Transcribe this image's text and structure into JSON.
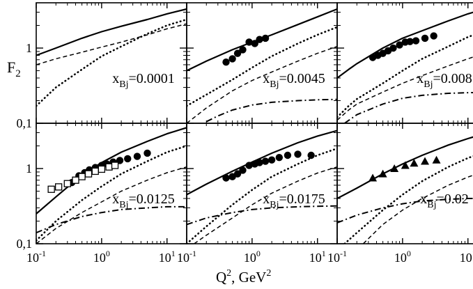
{
  "chart_data": {
    "type": "line",
    "title": "",
    "ylabel": "F",
    "ylabel_sub": "2",
    "xlabel": "Q",
    "xlabel_sup": "2",
    "xlabel_unit": ", GeV",
    "xlabel_unit_sup": "2",
    "x_scale": "log",
    "y_scale": "log",
    "xlim": [
      0.1,
      20
    ],
    "ylim": [
      0.1,
      4
    ],
    "grid": false,
    "x_ticks": [
      {
        "base": "10",
        "exp": "-1",
        "value": 0.1
      },
      {
        "base": "10",
        "exp": "0",
        "value": 1
      },
      {
        "base": "10",
        "exp": "1",
        "value": 10
      }
    ],
    "y_ticks": [
      {
        "label": "0,1",
        "value": 0.1
      },
      {
        "label": "1",
        "value": 1
      }
    ],
    "panels": [
      {
        "label_main": "x",
        "label_sub": "Bj",
        "label_value": "=0.0001",
        "series": [
          {
            "name": "solid",
            "style": "solid",
            "x": [
              0.1,
              0.2,
              0.5,
              1,
              2,
              5,
              10,
              20
            ],
            "y": [
              0.8,
              1.0,
              1.35,
              1.65,
              1.95,
              2.4,
              2.85,
              3.3
            ]
          },
          {
            "name": "dashed",
            "style": "dashed",
            "x": [
              0.1,
              0.2,
              0.5,
              1,
              2,
              5,
              10,
              20
            ],
            "y": [
              0.6,
              0.72,
              0.88,
              1.03,
              1.2,
              1.5,
              1.8,
              2.1
            ]
          },
          {
            "name": "dotted",
            "style": "dotted",
            "x": [
              0.1,
              0.2,
              0.5,
              1,
              2,
              5,
              10,
              20
            ],
            "y": [
              0.17,
              0.3,
              0.52,
              0.78,
              1.05,
              1.55,
              2.0,
              2.4
            ]
          }
        ],
        "points": []
      },
      {
        "label_main": "x",
        "label_sub": "Bj",
        "label_value": "=0.0045",
        "series": [
          {
            "name": "solid",
            "style": "solid",
            "x": [
              0.1,
              0.2,
              0.5,
              1,
              2,
              5,
              10,
              20
            ],
            "y": [
              0.5,
              0.67,
              0.95,
              1.2,
              1.5,
              2.05,
              2.6,
              3.3
            ]
          },
          {
            "name": "dotted",
            "style": "dotted",
            "x": [
              0.1,
              0.2,
              0.5,
              1,
              2,
              5,
              10,
              20
            ],
            "y": [
              0.17,
              0.24,
              0.38,
              0.55,
              0.78,
              1.15,
              1.5,
              1.9
            ]
          },
          {
            "name": "dashed",
            "style": "dashed",
            "x": [
              0.1,
              0.2,
              0.5,
              1,
              2,
              5,
              10,
              20
            ],
            "y": [
              0.1,
              0.16,
              0.27,
              0.37,
              0.48,
              0.67,
              0.85,
              1.05
            ]
          },
          {
            "name": "dash-dot",
            "style": "dashdot",
            "x": [
              0.2,
              0.3,
              0.5,
              1,
              2,
              5,
              10,
              20
            ],
            "y": [
              0.105,
              0.125,
              0.15,
              0.175,
              0.19,
              0.2,
              0.205,
              0.208
            ]
          }
        ],
        "points": [
          {
            "marker": "circle",
            "x": [
              0.4,
              0.5,
              0.6,
              0.72,
              0.9,
              1.1,
              1.3,
              1.6
            ],
            "y": [
              0.65,
              0.72,
              0.85,
              0.95,
              1.2,
              1.15,
              1.3,
              1.35
            ]
          }
        ]
      },
      {
        "label_main": "x",
        "label_sub": "Bj",
        "label_value": "=0.008",
        "series": [
          {
            "name": "solid",
            "style": "solid",
            "x": [
              0.1,
              0.15,
              0.2,
              0.5,
              1,
              2,
              5,
              10,
              20
            ],
            "y": [
              0.4,
              0.52,
              0.62,
              1.0,
              1.35,
              1.7,
              2.3,
              2.85,
              3.4
            ]
          },
          {
            "name": "dotted",
            "style": "dotted",
            "x": [
              0.1,
              0.15,
              0.2,
              0.5,
              1,
              2,
              5,
              10,
              20
            ],
            "y": [
              0.12,
              0.17,
              0.21,
              0.34,
              0.5,
              0.72,
              1.05,
              1.4,
              1.75
            ]
          },
          {
            "name": "dashed",
            "style": "dashed",
            "x": [
              0.1,
              0.15,
              0.2,
              0.5,
              1,
              2,
              5,
              10,
              20
            ],
            "y": [
              0.11,
              0.15,
              0.18,
              0.26,
              0.34,
              0.43,
              0.58,
              0.72,
              0.88
            ]
          },
          {
            "name": "dash-dot",
            "style": "dashdot",
            "x": [
              0.13,
              0.2,
              0.5,
              1,
              2,
              5,
              10,
              20
            ],
            "y": [
              0.1,
              0.13,
              0.18,
              0.215,
              0.235,
              0.25,
              0.255,
              0.258
            ]
          }
        ],
        "points": [
          {
            "marker": "circle",
            "x": [
              0.35,
              0.42,
              0.5,
              0.6,
              0.72,
              0.9,
              1.1,
              1.3,
              1.6,
              2.2,
              3.0
            ],
            "y": [
              0.75,
              0.8,
              0.85,
              0.92,
              1.0,
              1.1,
              1.2,
              1.22,
              1.25,
              1.35,
              1.45
            ]
          }
        ]
      },
      {
        "label_main": "x",
        "label_sub": "Bj",
        "label_value": "=0.0125",
        "series": [
          {
            "name": "solid",
            "style": "solid",
            "x": [
              0.1,
              0.2,
              0.5,
              1,
              2,
              5,
              10,
              20
            ],
            "y": [
              0.25,
              0.42,
              0.82,
              1.2,
              1.65,
              2.3,
              2.9,
              3.5
            ]
          },
          {
            "name": "dotted",
            "style": "dotted",
            "x": [
              0.1,
              0.2,
              0.5,
              1,
              2,
              5,
              10,
              20
            ],
            "y": [
              0.11,
              0.2,
              0.38,
              0.58,
              0.85,
              1.25,
              1.65,
              2.0
            ]
          },
          {
            "name": "dashed",
            "style": "dashed",
            "x": [
              0.1,
              0.2,
              0.5,
              1,
              2,
              5,
              10,
              20
            ],
            "y": [
              0.1,
              0.16,
              0.26,
              0.36,
              0.5,
              0.7,
              0.88,
              1.05
            ]
          },
          {
            "name": "dash-dot",
            "style": "dashdot",
            "x": [
              0.1,
              0.2,
              0.5,
              1,
              2,
              5,
              10,
              20
            ],
            "y": [
              0.14,
              0.18,
              0.23,
              0.26,
              0.285,
              0.3,
              0.31,
              0.31
            ]
          }
        ],
        "points": [
          {
            "marker": "circle",
            "x": [
              0.35,
              0.45,
              0.55,
              0.65,
              0.8,
              1.0,
              1.2,
              1.5,
              1.9,
              2.5,
              3.5,
              5.0
            ],
            "y": [
              0.65,
              0.8,
              0.88,
              0.96,
              1.03,
              1.1,
              1.15,
              1.22,
              1.28,
              1.35,
              1.45,
              1.6
            ]
          },
          {
            "marker": "square",
            "x": [
              0.17,
              0.22,
              0.3,
              0.4,
              0.5,
              0.63,
              0.8,
              1.0,
              1.3,
              1.6
            ],
            "y": [
              0.53,
              0.57,
              0.63,
              0.7,
              0.78,
              0.85,
              0.92,
              0.98,
              1.05,
              1.1
            ]
          }
        ]
      },
      {
        "label_main": "x",
        "label_sub": "Bj",
        "label_value": "=0.0175",
        "series": [
          {
            "name": "solid",
            "style": "solid",
            "x": [
              0.1,
              0.2,
              0.5,
              1,
              2,
              5,
              10,
              20
            ],
            "y": [
              0.45,
              0.62,
              0.92,
              1.22,
              1.6,
              2.2,
              2.7,
              3.2
            ]
          },
          {
            "name": "dotted",
            "style": "dotted",
            "x": [
              0.1,
              0.2,
              0.5,
              1,
              2,
              5,
              10,
              20
            ],
            "y": [
              0.1,
              0.17,
              0.33,
              0.52,
              0.78,
              1.15,
              1.5,
              1.85
            ]
          },
          {
            "name": "dashed",
            "style": "dashed",
            "x": [
              0.13,
              0.2,
              0.5,
              1,
              2,
              5,
              10,
              20
            ],
            "y": [
              0.1,
              0.13,
              0.22,
              0.33,
              0.47,
              0.68,
              0.87,
              1.05
            ]
          },
          {
            "name": "dash-dot",
            "style": "dashdot",
            "x": [
              0.1,
              0.2,
              0.5,
              1,
              2,
              5,
              10,
              20
            ],
            "y": [
              0.18,
              0.22,
              0.26,
              0.285,
              0.3,
              0.31,
              0.315,
              0.318
            ]
          }
        ],
        "points": [
          {
            "marker": "circle",
            "x": [
              0.4,
              0.5,
              0.6,
              0.72,
              0.9,
              1.1,
              1.3,
              1.6,
              2.0,
              2.6,
              3.5,
              5.0,
              8.0
            ],
            "y": [
              0.75,
              0.78,
              0.85,
              0.95,
              1.1,
              1.15,
              1.2,
              1.25,
              1.3,
              1.4,
              1.5,
              1.55,
              1.5
            ]
          }
        ]
      },
      {
        "label_main": "x",
        "label_sub": "Bj",
        "label_value": "=0.02",
        "series": [
          {
            "name": "solid",
            "style": "solid",
            "x": [
              0.1,
              0.2,
              0.5,
              1,
              2,
              5,
              10,
              20
            ],
            "y": [
              0.4,
              0.55,
              0.85,
              1.15,
              1.5,
              2.05,
              2.5,
              3.0
            ]
          },
          {
            "name": "dotted",
            "style": "dotted",
            "x": [
              0.13,
              0.2,
              0.5,
              1,
              2,
              5,
              10,
              20
            ],
            "y": [
              0.1,
              0.14,
              0.28,
              0.45,
              0.68,
              1.05,
              1.38,
              1.7
            ]
          },
          {
            "name": "dashed",
            "style": "dashed",
            "x": [
              0.25,
              0.5,
              1,
              2,
              5,
              10,
              20
            ],
            "y": [
              0.1,
              0.18,
              0.28,
              0.4,
              0.6,
              0.77,
              0.95
            ]
          },
          {
            "name": "dash-dot",
            "style": "dashdot",
            "x": [
              0.1,
              0.2,
              0.5,
              1,
              2,
              5,
              10,
              20
            ],
            "y": [
              0.19,
              0.24,
              0.3,
              0.34,
              0.37,
              0.39,
              0.4,
              0.4
            ]
          }
        ],
        "points": [
          {
            "marker": "triangle",
            "x": [
              0.35,
              0.5,
              0.75,
              1.1,
              1.5,
              2.2,
              3.3
            ],
            "y": [
              0.75,
              0.85,
              1.0,
              1.1,
              1.18,
              1.25,
              1.3
            ]
          }
        ]
      }
    ]
  }
}
